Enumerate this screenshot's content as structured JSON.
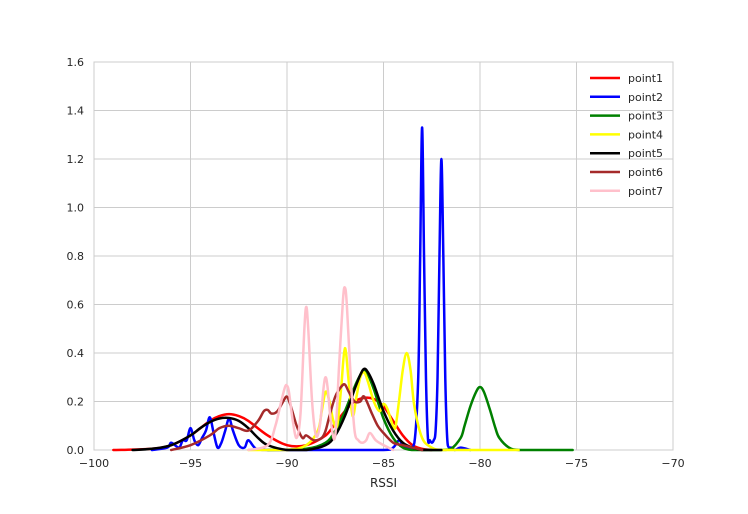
{
  "chart_data": {
    "type": "line",
    "title": "",
    "xlabel": "RSSI",
    "ylabel": "",
    "xlim": [
      -100,
      -70
    ],
    "ylim": [
      0,
      1.6
    ],
    "xticks": [
      -100,
      -95,
      -90,
      -85,
      -80,
      -75,
      -70
    ],
    "yticks": [
      0.0,
      0.2,
      0.4,
      0.6,
      0.8,
      1.0,
      1.2,
      1.4,
      1.6
    ],
    "xtick_labels": [
      "−100",
      "−95",
      "−90",
      "−85",
      "−80",
      "−75",
      "−70"
    ],
    "ytick_labels": [
      "0.0",
      "0.2",
      "0.4",
      "0.6",
      "0.8",
      "1.0",
      "1.2",
      "1.4",
      "1.6"
    ],
    "grid": true,
    "legend_position": "top-right",
    "series": [
      {
        "name": "point1",
        "color": "#ff0000",
        "x": [
          -99,
          -97,
          -96,
          -95,
          -94,
          -93.5,
          -93,
          -92.5,
          -92,
          -91,
          -90,
          -89,
          -88,
          -87.5,
          -87,
          -86.5,
          -86,
          -85.5,
          -85,
          -84.5,
          -84,
          -83.5,
          -83,
          -82.5
        ],
        "y": [
          0.0,
          0.005,
          0.02,
          0.06,
          0.12,
          0.14,
          0.148,
          0.14,
          0.12,
          0.06,
          0.02,
          0.02,
          0.06,
          0.11,
          0.16,
          0.2,
          0.215,
          0.21,
          0.18,
          0.12,
          0.06,
          0.02,
          0.005,
          0.0
        ]
      },
      {
        "name": "point2",
        "color": "#0000ff",
        "x": [
          -97,
          -96.2,
          -96,
          -95.6,
          -95.4,
          -95.2,
          -95.0,
          -94.8,
          -94.6,
          -94.4,
          -94.2,
          -94.0,
          -93.8,
          -93.6,
          -93.4,
          -93.2,
          -93.0,
          -92.8,
          -92.5,
          -92.2,
          -92.0,
          -91.6,
          -91.0,
          -90,
          -88,
          -85,
          -84.5,
          -84.2,
          -84.0,
          -83.7,
          -83.4,
          -83.2,
          -83.1,
          -83.0,
          -82.9,
          -82.8,
          -82.7,
          -82.6,
          -82.5,
          -82.4,
          -82.3,
          -82.2,
          -82.1,
          -82.0,
          -81.9,
          -81.8,
          -81.7,
          -81.6,
          -81.5,
          -81.3,
          -81.0,
          -80.5
        ],
        "y": [
          0.0,
          0.01,
          0.03,
          0.01,
          0.04,
          0.04,
          0.09,
          0.04,
          0.02,
          0.05,
          0.08,
          0.135,
          0.07,
          0.01,
          0.03,
          0.08,
          0.13,
          0.08,
          0.02,
          0.01,
          0.04,
          0.005,
          0.0,
          0.0,
          0.0,
          0.0,
          0.01,
          0.04,
          0.02,
          0.01,
          0.03,
          0.3,
          0.8,
          1.33,
          0.8,
          0.3,
          0.05,
          0.04,
          0.03,
          0.04,
          0.08,
          0.3,
          0.8,
          1.2,
          0.8,
          0.3,
          0.05,
          0.01,
          0.01,
          0.0,
          0.01,
          0.0
        ]
      },
      {
        "name": "point3",
        "color": "#008000",
        "x": [
          -91,
          -89,
          -88,
          -87.5,
          -87,
          -86.5,
          -86.2,
          -86.0,
          -85.8,
          -85.5,
          -85,
          -84.5,
          -84,
          -83.5,
          -83,
          -82,
          -81.5,
          -81,
          -80.8,
          -80.5,
          -80.2,
          -80.0,
          -79.8,
          -79.5,
          -79.2,
          -79.0,
          -78.5,
          -78,
          -77,
          -76,
          -75.2
        ],
        "y": [
          0.0,
          0.005,
          0.03,
          0.08,
          0.16,
          0.26,
          0.31,
          0.33,
          0.31,
          0.25,
          0.13,
          0.05,
          0.01,
          0.0,
          0.0,
          0.0,
          0.005,
          0.05,
          0.1,
          0.18,
          0.24,
          0.26,
          0.24,
          0.17,
          0.09,
          0.05,
          0.01,
          0.0,
          0.0,
          0.0,
          0.0
        ]
      },
      {
        "name": "point4",
        "color": "#ffff00",
        "x": [
          -92,
          -90,
          -89,
          -88.4,
          -88.2,
          -88.0,
          -87.8,
          -87.6,
          -87.4,
          -87.2,
          -87.0,
          -86.8,
          -86.6,
          -86.4,
          -86.2,
          -86.0,
          -85.8,
          -85.5,
          -85.2,
          -85.0,
          -84.8,
          -84.6,
          -84.4,
          -84.2,
          -84.0,
          -83.8,
          -83.6,
          -83.4,
          -83.0,
          -82.5,
          -82,
          -81,
          -80,
          -79,
          -78
        ],
        "y": [
          0.0,
          0.0,
          0.02,
          0.08,
          0.16,
          0.24,
          0.2,
          0.12,
          0.1,
          0.25,
          0.42,
          0.28,
          0.14,
          0.22,
          0.3,
          0.32,
          0.28,
          0.2,
          0.16,
          0.19,
          0.17,
          0.12,
          0.09,
          0.2,
          0.33,
          0.4,
          0.33,
          0.18,
          0.05,
          0.01,
          0.0,
          0.0,
          0.0,
          0.0,
          0.0
        ]
      },
      {
        "name": "point5",
        "color": "#000000",
        "x": [
          -98,
          -97,
          -96,
          -95,
          -94.5,
          -94,
          -93.5,
          -93.0,
          -92.5,
          -92,
          -91.5,
          -91,
          -90,
          -89,
          -88,
          -87.5,
          -87,
          -86.5,
          -86.2,
          -86.0,
          -85.8,
          -85.5,
          -85,
          -84.5,
          -84,
          -83.5,
          -83,
          -82
        ],
        "y": [
          0.0,
          0.005,
          0.02,
          0.06,
          0.09,
          0.115,
          0.13,
          0.132,
          0.12,
          0.09,
          0.05,
          0.02,
          0.0,
          0.0,
          0.02,
          0.06,
          0.14,
          0.25,
          0.31,
          0.335,
          0.32,
          0.27,
          0.16,
          0.08,
          0.03,
          0.01,
          0.0,
          0.0
        ]
      },
      {
        "name": "point6",
        "color": "#a52a2a",
        "x": [
          -96,
          -95,
          -94,
          -93.5,
          -93,
          -92.5,
          -92,
          -91.5,
          -91.2,
          -91.0,
          -90.8,
          -90.5,
          -90.2,
          -90.0,
          -89.8,
          -89.5,
          -89.2,
          -89.0,
          -88.6,
          -88.2,
          -88.0,
          -87.8,
          -87.5,
          -87.2,
          -87.0,
          -86.8,
          -86.5,
          -86.2,
          -86.0,
          -85.6,
          -85.3,
          -85.0,
          -84.5,
          -84.0,
          -83.5,
          -83
        ],
        "y": [
          0.0,
          0.02,
          0.06,
          0.09,
          0.1,
          0.09,
          0.08,
          0.12,
          0.16,
          0.165,
          0.15,
          0.16,
          0.2,
          0.22,
          0.18,
          0.1,
          0.05,
          0.06,
          0.04,
          0.05,
          0.08,
          0.14,
          0.22,
          0.26,
          0.27,
          0.24,
          0.2,
          0.2,
          0.22,
          0.15,
          0.1,
          0.07,
          0.03,
          0.02,
          0.01,
          0.0
        ]
      },
      {
        "name": "point7",
        "color": "#ffc0cb",
        "x": [
          -92,
          -91,
          -90.6,
          -90.3,
          -90.1,
          -90.0,
          -89.9,
          -89.7,
          -89.5,
          -89.3,
          -89.1,
          -89.0,
          -88.9,
          -88.7,
          -88.5,
          -88.3,
          -88.1,
          -88.0,
          -87.9,
          -87.7,
          -87.5,
          -87.3,
          -87.1,
          -87.0,
          -86.9,
          -86.7,
          -86.5,
          -86.3,
          -86.1,
          -85.9,
          -85.7,
          -85.4,
          -85.0,
          -84.5
        ],
        "y": [
          0.0,
          0.02,
          0.1,
          0.2,
          0.26,
          0.265,
          0.24,
          0.12,
          0.05,
          0.15,
          0.5,
          0.59,
          0.5,
          0.2,
          0.06,
          0.1,
          0.26,
          0.3,
          0.26,
          0.1,
          0.06,
          0.35,
          0.62,
          0.67,
          0.6,
          0.3,
          0.08,
          0.04,
          0.03,
          0.04,
          0.07,
          0.04,
          0.02,
          0.0
        ]
      }
    ]
  }
}
